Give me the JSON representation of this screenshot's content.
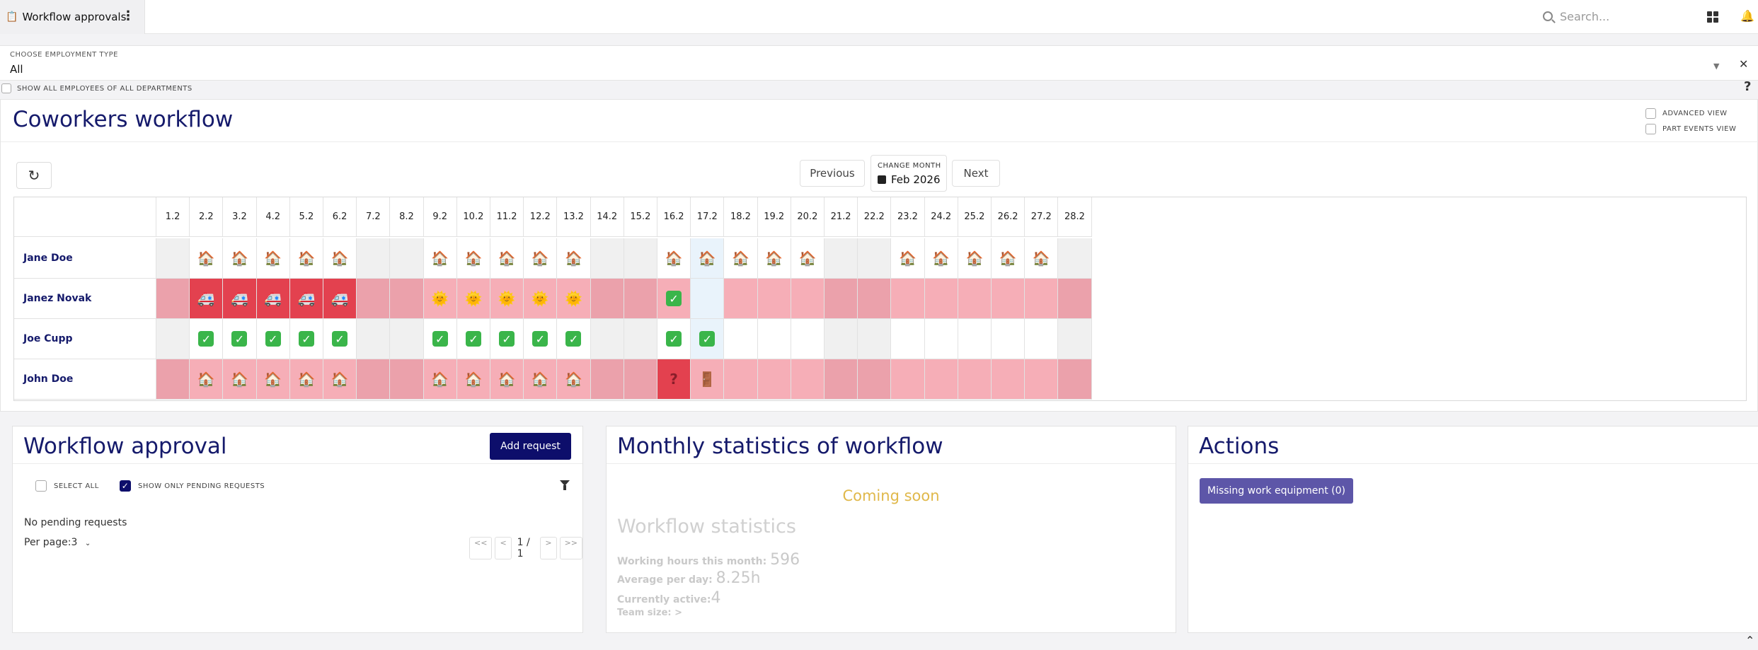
{
  "tab": {
    "title": "Workflow approvals"
  },
  "search": {
    "placeholder": "Search..."
  },
  "filter": {
    "label": "CHOOSE EMPLOYMENT TYPE",
    "value": "All"
  },
  "show_all_label": "SHOW ALL EMPLOYEES OF ALL DEPARTMENTS",
  "workflow": {
    "title": "Coworkers workflow",
    "advanced_view": "ADVANCED VIEW",
    "part_events_view": "PART EVENTS VIEW",
    "previous": "Previous",
    "next": "Next",
    "change_month_label": "CHANGE MONTH",
    "month": "Feb 2026",
    "days": [
      "1.2",
      "2.2",
      "3.2",
      "4.2",
      "5.2",
      "6.2",
      "7.2",
      "8.2",
      "9.2",
      "10.2",
      "11.2",
      "12.2",
      "13.2",
      "14.2",
      "15.2",
      "16.2",
      "17.2",
      "18.2",
      "19.2",
      "20.2",
      "21.2",
      "22.2",
      "23.2",
      "24.2",
      "25.2",
      "26.2",
      "27.2",
      "28.2"
    ],
    "rows": [
      {
        "name": "Jane Doe",
        "cells": [
          "g",
          "w:home",
          "w:home",
          "w:home",
          "w:home",
          "w:home",
          "g",
          "g",
          "w:home",
          "w:home",
          "w:home",
          "w:home",
          "w:home",
          "g",
          "g",
          "w:home",
          "b:home",
          "w:home",
          "w:home",
          "w:home",
          "g",
          "g",
          "w:home",
          "w:home",
          "w:home",
          "w:home",
          "w:home",
          "g"
        ]
      },
      {
        "name": "Janez Novak",
        "cells": [
          "dp",
          "r:ambulance",
          "r:ambulance",
          "r:ambulance",
          "r:ambulance",
          "r:ambulance",
          "dp",
          "dp",
          "lp:sun",
          "lp:sun",
          "lp:sun",
          "lp:sun",
          "lp:sun",
          "dp",
          "dp",
          "lp:check",
          "b",
          "lp",
          "lp",
          "lp",
          "dp",
          "dp",
          "lp",
          "lp",
          "lp",
          "lp",
          "lp",
          "dp"
        ]
      },
      {
        "name": "Joe Cupp",
        "cells": [
          "g",
          "w:check",
          "w:check",
          "w:check",
          "w:check",
          "w:check",
          "g",
          "g",
          "w:check",
          "w:check",
          "w:check",
          "w:check",
          "w:check",
          "g",
          "g",
          "w:check",
          "b:check",
          "w",
          "w",
          "w",
          "g",
          "g",
          "w",
          "w",
          "w",
          "w",
          "w",
          "g"
        ]
      },
      {
        "name": "John Doe",
        "cells": [
          "dp",
          "lp:home",
          "lp:home",
          "lp:home",
          "lp:home",
          "lp:home",
          "dp",
          "dp",
          "lp:home",
          "lp:home",
          "lp:home",
          "lp:home",
          "lp:home",
          "dp",
          "dp",
          "r:question",
          "lp:door",
          "lp",
          "lp",
          "lp",
          "dp",
          "dp",
          "lp",
          "lp",
          "lp",
          "lp",
          "lp",
          "dp"
        ]
      }
    ]
  },
  "approval": {
    "title": "Workflow approval",
    "add_request": "Add request",
    "select_all": "SELECT ALL",
    "show_pending": "SHOW ONLY PENDING REQUESTS",
    "no_pending": "No pending requests",
    "per_page": "Per page:3",
    "pager": {
      "first": "<<",
      "prev": "<",
      "info": "1 / 1",
      "next": ">",
      "last": ">>"
    }
  },
  "stats": {
    "title": "Monthly statistics of workflow",
    "coming_soon": "Coming soon",
    "ws_title": "Workflow statistics",
    "working_hours_label": "Working hours this month:",
    "working_hours_value": "596",
    "avg_label": "Average per day:",
    "avg_value": "8.25h",
    "active_label": "Currently active:",
    "active_value": "4",
    "team_label": "Team size:",
    "team_value": ">"
  },
  "actions": {
    "title": "Actions",
    "missing_equipment": "Missing work equipment (0)"
  },
  "colors": {
    "navy": "#151a6b",
    "button": "#0d0e6b",
    "action_button": "#5d56a8",
    "red": "#e3414f",
    "light_pink": "#f6aeb7",
    "dark_pink": "#eba1ab",
    "weekend_gray": "#f0f0f0",
    "today_blue": "#e9f3fb",
    "coming_soon": "#e0b84a"
  }
}
